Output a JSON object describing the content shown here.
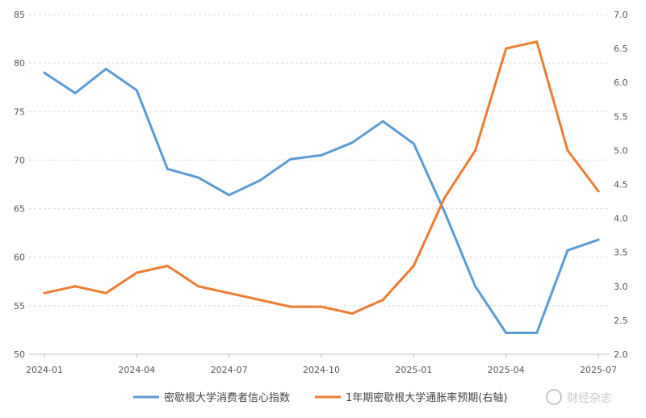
{
  "chart_data": {
    "type": "line",
    "x": [
      "2024-01",
      "2024-02",
      "2024-03",
      "2024-04",
      "2024-05",
      "2024-06",
      "2024-07",
      "2024-08",
      "2024-09",
      "2024-10",
      "2024-11",
      "2024-12",
      "2025-01",
      "2025-02",
      "2025-03",
      "2025-04",
      "2025-05",
      "2025-06",
      "2025-07"
    ],
    "x_tick_labels": [
      "2024-01",
      "2024-04",
      "2024-07",
      "2024-10",
      "2025-01",
      "2025-04",
      "2025-07"
    ],
    "y_left": {
      "ylim": [
        50,
        85
      ],
      "ticks": [
        "85",
        "80",
        "75",
        "70",
        "65",
        "60",
        "55",
        "50"
      ]
    },
    "y_right": {
      "ylim": [
        2.0,
        7.0
      ],
      "ticks": [
        "7.0",
        "6.5",
        "6.0",
        "5.5",
        "5.0",
        "4.5",
        "4.0",
        "3.5",
        "3.0",
        "2.5",
        "2.0"
      ]
    },
    "grid": true,
    "legend_position": "bottom",
    "series": [
      {
        "name": "密歇根大学消费者信心指数",
        "axis": "left",
        "color": "#5b9bd5",
        "values": [
          79.0,
          76.9,
          79.4,
          77.2,
          69.1,
          68.2,
          66.4,
          67.9,
          70.1,
          70.5,
          71.8,
          74.0,
          71.7,
          64.7,
          57.0,
          52.2,
          52.2,
          60.7,
          61.8
        ]
      },
      {
        "name": "1年期密歇根大学通胀率预期(右轴)",
        "axis": "right",
        "color": "#ed7d31",
        "values": [
          2.9,
          3.0,
          2.9,
          3.2,
          3.3,
          3.0,
          2.9,
          2.8,
          2.7,
          2.7,
          2.6,
          2.8,
          3.3,
          4.3,
          5.0,
          6.5,
          6.6,
          5.0,
          4.4
        ]
      }
    ]
  },
  "watermark": "财经杂志"
}
